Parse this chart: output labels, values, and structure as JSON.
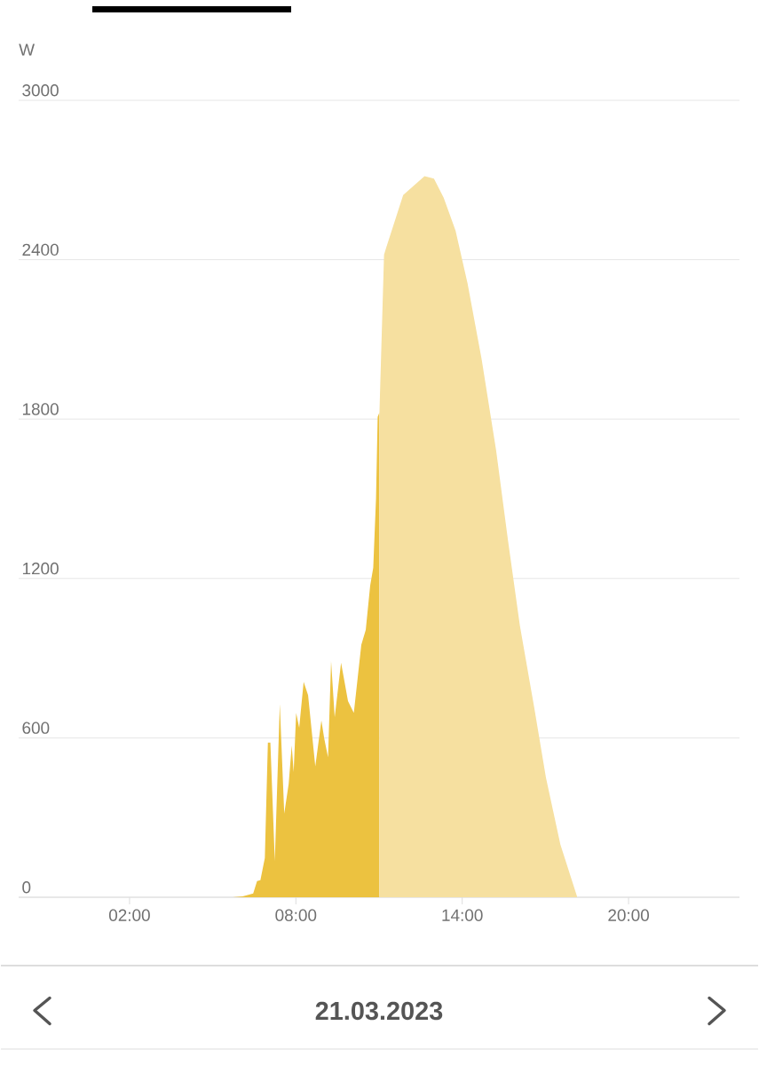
{
  "chart_data": {
    "type": "area",
    "xlabel": "21.03.2023",
    "ylabel": "W",
    "xlim": [
      -2,
      24
    ],
    "ylim": [
      0,
      3000
    ],
    "xticks": [
      {
        "value": 2,
        "label": "02:00"
      },
      {
        "value": 8,
        "label": "08:00"
      },
      {
        "value": 14,
        "label": "14:00"
      },
      {
        "value": 20,
        "label": "20:00"
      }
    ],
    "yticks": [
      0,
      600,
      1200,
      1800,
      2400,
      3000
    ],
    "grid": "y",
    "series": [
      {
        "color": "#ecc240",
        "x": [
          5.72,
          6.08,
          6.46,
          6.6,
          6.72,
          6.88,
          6.99,
          7.08,
          7.24,
          7.42,
          7.58,
          7.74,
          7.85,
          7.92,
          8.01,
          8.12,
          8.28,
          8.44,
          8.7,
          8.92,
          9.02,
          9.16,
          9.27,
          9.4,
          9.63,
          9.88,
          10.09,
          10.36,
          10.52,
          10.68,
          10.79,
          10.89,
          10.95,
          11.01
        ],
        "values": [
          0,
          3,
          14,
          61,
          64,
          148,
          582,
          582,
          137,
          727,
          315,
          427,
          571,
          471,
          694,
          638,
          811,
          761,
          493,
          666,
          599,
          527,
          889,
          677,
          883,
          738,
          694,
          950,
          1006,
          1173,
          1240,
          1500,
          1808,
          1824
        ]
      },
      {
        "color": "#f6e0a0",
        "x": [
          11.01,
          11.18,
          11.26,
          11.87,
          12.64,
          12.98,
          13.33,
          13.76,
          14.19,
          14.7,
          15.22,
          15.65,
          16.08,
          16.59,
          17.02,
          17.54,
          18.14
        ],
        "values": [
          1811,
          2419,
          2446,
          2643,
          2714,
          2705,
          2633,
          2509,
          2312,
          2025,
          1684,
          1344,
          1022,
          718,
          450,
          199,
          3
        ]
      }
    ]
  }
}
